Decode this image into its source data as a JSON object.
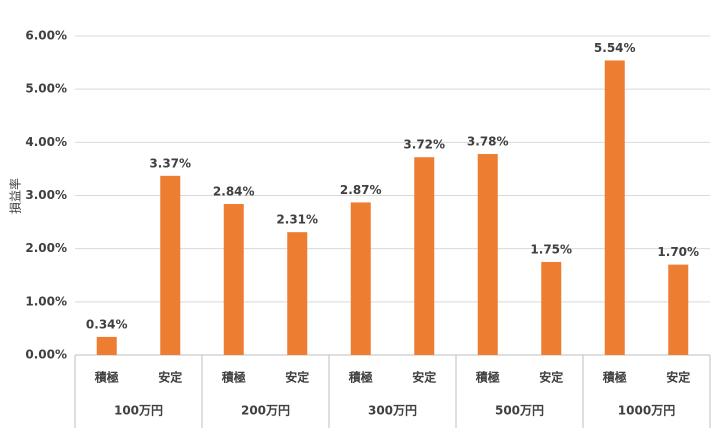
{
  "chart_data": {
    "type": "bar",
    "y_label": "損益率",
    "categories": [
      "積極",
      "安定",
      "積極",
      "安定",
      "積極",
      "安定",
      "積極",
      "安定",
      "積極",
      "安定"
    ],
    "groups": [
      "100万円",
      "200万円",
      "300万円",
      "500万円",
      "1000万円"
    ],
    "values": [
      0.34,
      3.37,
      2.84,
      2.31,
      2.87,
      3.72,
      3.78,
      1.75,
      5.54,
      1.7
    ],
    "value_labels": [
      "0.34%",
      "3.37%",
      "2.84%",
      "2.31%",
      "2.87%",
      "3.72%",
      "3.78%",
      "1.75%",
      "5.54%",
      "1.70%"
    ],
    "color": "#ed7d31",
    "ylim": [
      0,
      6
    ],
    "yticks": [
      {
        "value": 0,
        "label": "0.00%"
      },
      {
        "value": 1,
        "label": "1.00%"
      },
      {
        "value": 2,
        "label": "2.00%"
      },
      {
        "value": 3,
        "label": "3.00%"
      },
      {
        "value": 4,
        "label": "4.00%"
      },
      {
        "value": 5,
        "label": "5.00%"
      },
      {
        "value": 6,
        "label": "6.00%"
      }
    ],
    "grid": true
  }
}
